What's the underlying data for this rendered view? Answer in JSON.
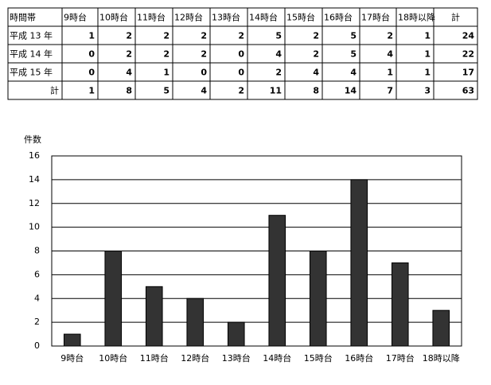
{
  "table": {
    "header": [
      "時間帯",
      "9時台",
      "10時台",
      "11時台",
      "12時台",
      "13時台",
      "14時台",
      "15時台",
      "16時台",
      "17時台",
      "18時以降",
      "計"
    ],
    "rows": [
      [
        "平成 13 年",
        "1",
        "2",
        "2",
        "2",
        "2",
        "5",
        "2",
        "5",
        "2",
        "1",
        "24"
      ],
      [
        "平成 14 年",
        "0",
        "2",
        "2",
        "2",
        "0",
        "4",
        "2",
        "5",
        "4",
        "1",
        "22"
      ],
      [
        "平成 15 年",
        "0",
        "4",
        "1",
        "0",
        "0",
        "2",
        "4",
        "4",
        "1",
        "1",
        "17"
      ],
      [
        "計",
        "1",
        "8",
        "5",
        "4",
        "2",
        "11",
        "8",
        "14",
        "7",
        "3",
        "63"
      ]
    ]
  },
  "chart_data": {
    "type": "bar",
    "y_label": "件数",
    "categories": [
      "9時台",
      "10時台",
      "11時台",
      "12時台",
      "13時台",
      "14時台",
      "15時台",
      "16時台",
      "17時台",
      "18時以降"
    ],
    "values": [
      1,
      8,
      5,
      4,
      2,
      11,
      8,
      14,
      7,
      3
    ],
    "color": "#333333",
    "ylim": [
      0,
      16
    ],
    "yticks": [
      0,
      2,
      4,
      6,
      8,
      10,
      12,
      14,
      16
    ],
    "grid": true
  }
}
